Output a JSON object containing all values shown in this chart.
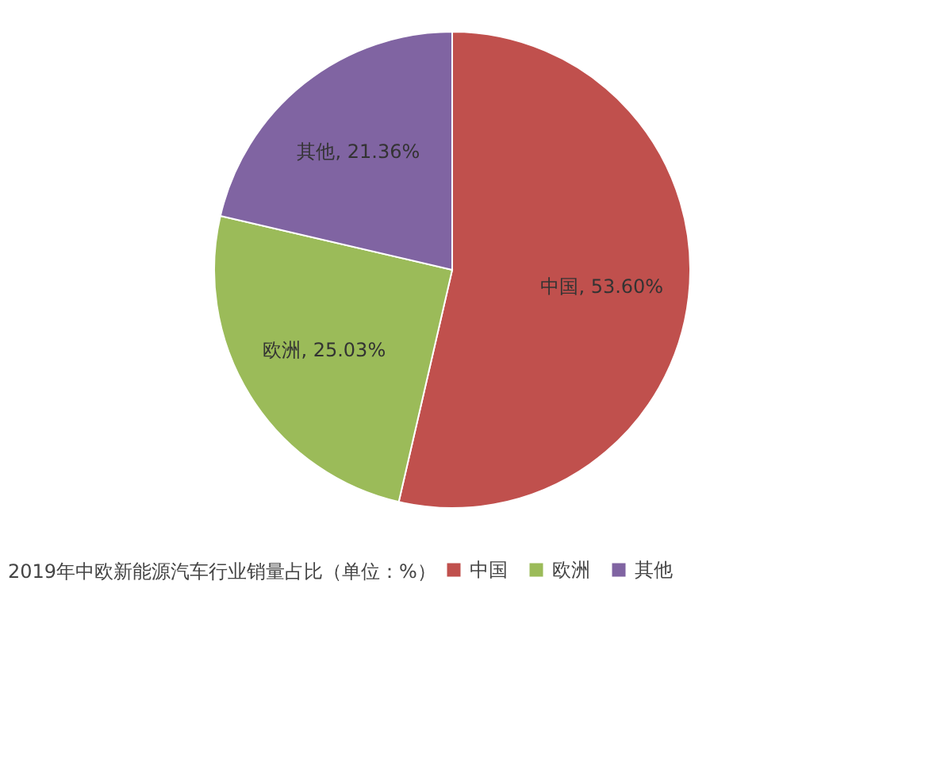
{
  "chart_data": {
    "type": "pie",
    "legend_title": "2019年中欧新能源汽车行业销量占比（单位：%）",
    "categories": [
      "中国",
      "欧洲",
      "其他"
    ],
    "values": [
      53.6,
      25.03,
      21.36
    ],
    "colors": [
      "#c0504d",
      "#9bbb59",
      "#8064a2"
    ],
    "value_labels": [
      "中国, 53.60%",
      "欧洲, 25.03%",
      "其他, 21.36%"
    ],
    "legend": "bottom"
  }
}
